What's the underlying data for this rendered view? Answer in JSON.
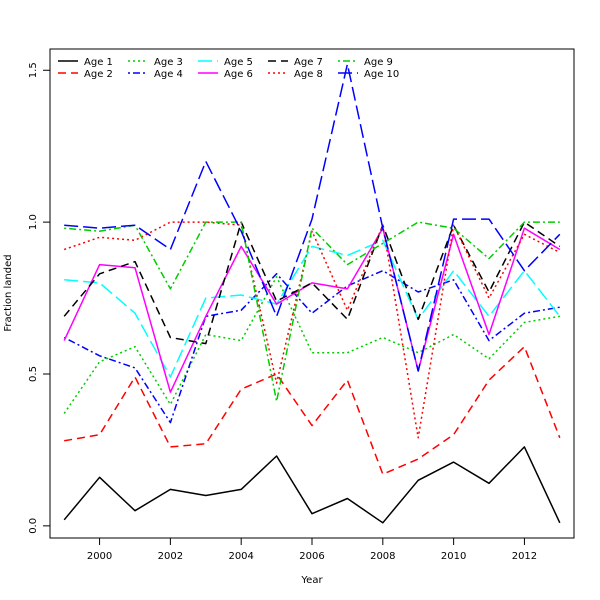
{
  "chart_data": {
    "type": "line",
    "title": "",
    "xlabel": "Year",
    "ylabel": "Fraction landed",
    "xlim": [
      1998.6,
      2013.4
    ],
    "ylim": [
      -0.04,
      1.57
    ],
    "x_ticks": [
      2000,
      2002,
      2004,
      2006,
      2008,
      2010,
      2012
    ],
    "y_ticks": [
      0.0,
      0.5,
      1.0,
      1.5
    ],
    "x_tick_labels": [
      "2000",
      "2002",
      "2004",
      "2006",
      "2008",
      "2010",
      "2012"
    ],
    "y_tick_labels": [
      "0.0",
      "0.5",
      "1.0",
      "1.5"
    ],
    "grid": false,
    "legend_position": "top-left",
    "x": [
      1999,
      2000,
      2001,
      2002,
      2003,
      2004,
      2005,
      2006,
      2007,
      2008,
      2009,
      2010,
      2011,
      2012,
      2013
    ],
    "series": [
      {
        "name": "Age 1",
        "color": "#000000",
        "dash": "solid",
        "values": [
          0.02,
          0.16,
          0.05,
          0.12,
          0.1,
          0.12,
          0.23,
          0.04,
          0.09,
          0.01,
          0.15,
          0.21,
          0.14,
          0.26,
          0.01
        ]
      },
      {
        "name": "Age 2",
        "color": "#ff0000",
        "dash": "dashed",
        "values": [
          0.28,
          0.3,
          0.49,
          0.26,
          0.27,
          0.45,
          0.5,
          0.33,
          0.48,
          0.17,
          0.22,
          0.3,
          0.48,
          0.59,
          0.29
        ]
      },
      {
        "name": "Age 3",
        "color": "#00cd00",
        "dash": "dotted",
        "values": [
          0.37,
          0.54,
          0.59,
          0.4,
          0.63,
          0.61,
          0.82,
          0.57,
          0.57,
          0.62,
          0.57,
          0.63,
          0.55,
          0.67,
          0.69
        ]
      },
      {
        "name": "Age 4",
        "color": "#0000ff",
        "dash": "dotdash",
        "values": [
          0.62,
          0.56,
          0.52,
          0.34,
          0.69,
          0.71,
          0.83,
          0.7,
          0.79,
          0.84,
          0.77,
          0.81,
          0.61,
          0.7,
          0.72
        ]
      },
      {
        "name": "Age 5",
        "color": "#00ffff",
        "dash": "longdash",
        "values": [
          0.81,
          0.8,
          0.7,
          0.49,
          0.75,
          0.76,
          0.73,
          0.92,
          0.89,
          0.94,
          0.68,
          0.84,
          0.69,
          0.84,
          0.69
        ]
      },
      {
        "name": "Age 6",
        "color": "#ff00ff",
        "dash": "solid",
        "values": [
          0.61,
          0.86,
          0.85,
          0.44,
          0.69,
          0.92,
          0.73,
          0.8,
          0.78,
          0.98,
          0.51,
          0.96,
          0.63,
          0.98,
          0.91
        ]
      },
      {
        "name": "Age 7",
        "color": "#000000",
        "dash": "dashed",
        "values": [
          0.69,
          0.83,
          0.87,
          0.62,
          0.6,
          1.0,
          0.74,
          0.8,
          0.68,
          0.99,
          0.68,
          0.99,
          0.77,
          1.0,
          0.92
        ]
      },
      {
        "name": "Age 8",
        "color": "#ff0000",
        "dash": "dotted",
        "values": [
          0.91,
          0.95,
          0.94,
          1.0,
          1.0,
          0.99,
          0.47,
          0.97,
          0.71,
          0.99,
          0.29,
          0.99,
          0.75,
          0.96,
          0.9
        ]
      },
      {
        "name": "Age 9",
        "color": "#00cd00",
        "dash": "dotdash",
        "values": [
          0.98,
          0.97,
          0.99,
          0.78,
          1.0,
          1.0,
          0.41,
          0.98,
          0.86,
          0.93,
          1.0,
          0.98,
          0.88,
          1.0,
          1.0
        ]
      },
      {
        "name": "Age 10",
        "color": "#0000ff",
        "dash": "longdash",
        "values": [
          0.99,
          0.98,
          0.99,
          0.91,
          1.2,
          0.97,
          0.69,
          1.01,
          1.52,
          0.98,
          0.51,
          1.01,
          1.01,
          0.84,
          0.96
        ]
      }
    ]
  }
}
